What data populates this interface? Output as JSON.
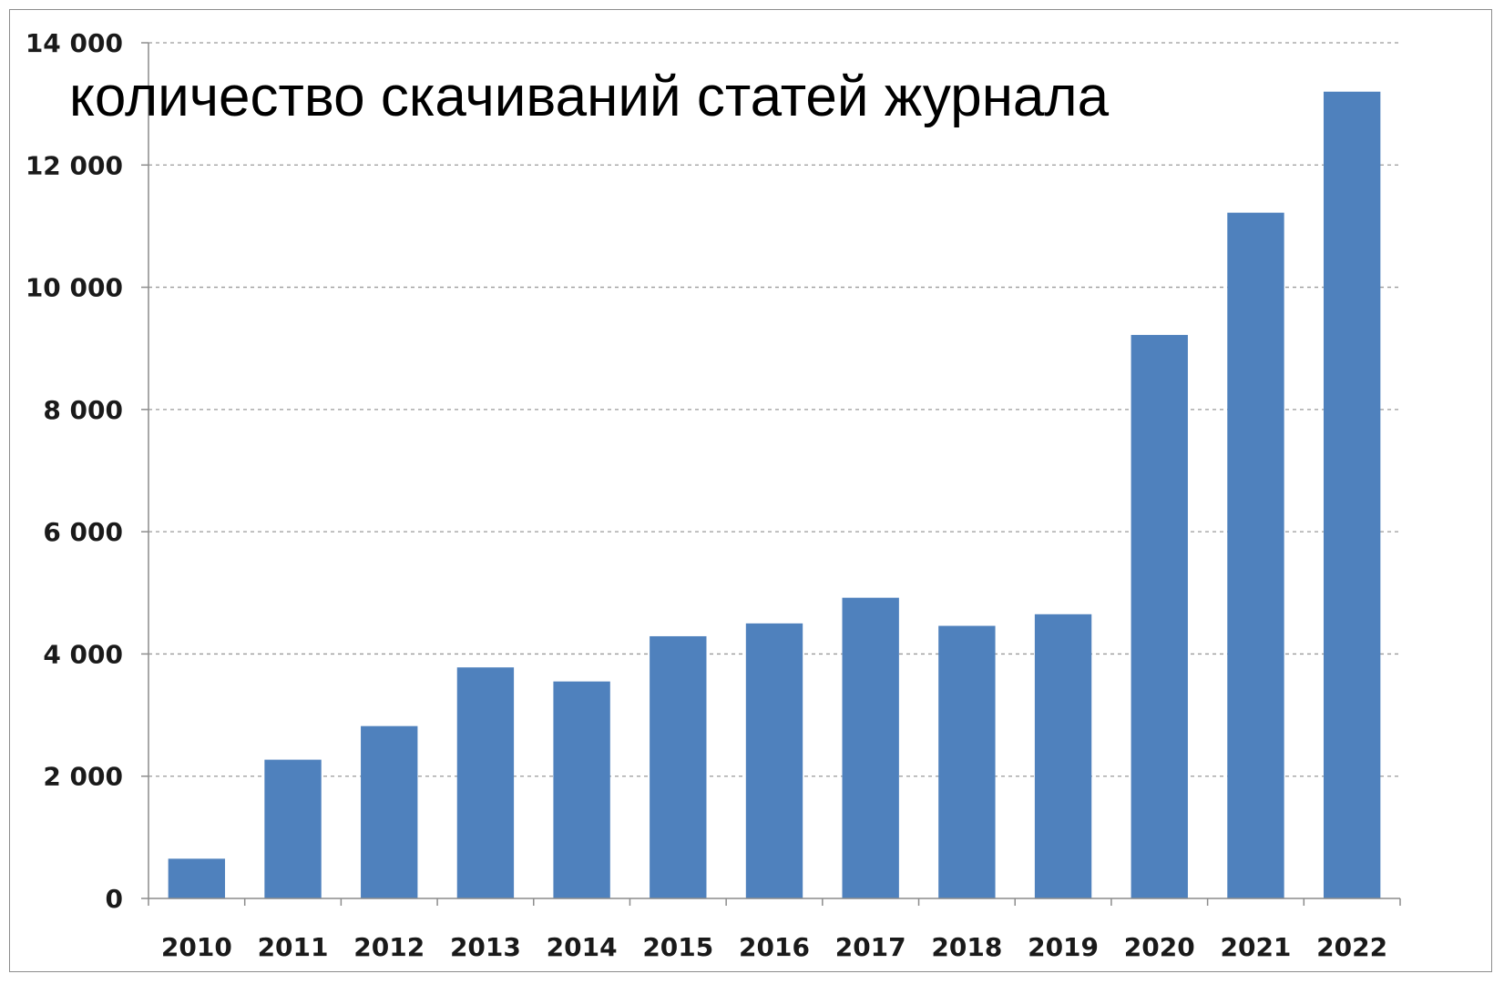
{
  "chart_data": {
    "type": "bar",
    "title": "количество скачиваний статей журнала",
    "xlabel": "",
    "ylabel": "",
    "categories": [
      "2010",
      "2011",
      "2012",
      "2013",
      "2014",
      "2015",
      "2016",
      "2017",
      "2018",
      "2019",
      "2020",
      "2021",
      "2022"
    ],
    "values": [
      650,
      2270,
      2820,
      3780,
      3550,
      4290,
      4500,
      4920,
      4460,
      4650,
      9220,
      11220,
      13200
    ],
    "ylim": [
      0,
      14000
    ],
    "yticks": [
      0,
      2000,
      4000,
      6000,
      8000,
      10000,
      12000,
      14000
    ],
    "ytick_labels": [
      "0",
      "2 000",
      "4 000",
      "6 000",
      "8 000",
      "10 000",
      "12 000",
      "14 000"
    ],
    "grid": true,
    "legend": "none",
    "colors": {
      "bar": "#4f81bd",
      "grid": "#9a9a9a",
      "axis": "#8c8c8c"
    }
  }
}
